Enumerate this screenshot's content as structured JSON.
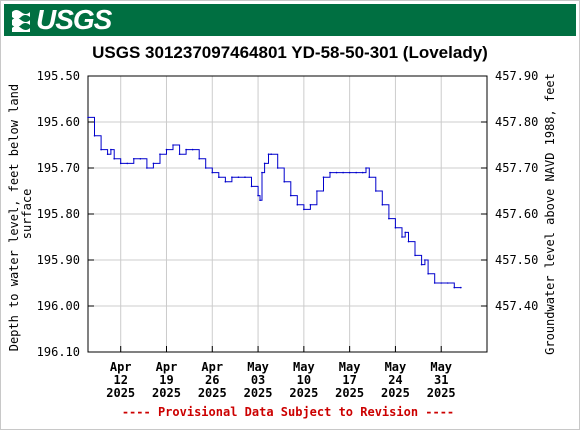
{
  "header": {
    "agency": "USGS",
    "brand_color": "#006F41"
  },
  "chart_data": {
    "type": "line",
    "title": "USGS 301237097464801 YD-58-50-301 (Lovelady)",
    "ylabel_left": "Depth to water level, feet below land surface",
    "ylabel_right": "Groundwater level above NAVD 1988, feet",
    "y_left_range": [
      195.5,
      196.1
    ],
    "y_left_inverted": true,
    "y_left_ticks": [
      "195.50",
      "195.60",
      "195.70",
      "195.80",
      "195.90",
      "196.00",
      "196.10"
    ],
    "y_right_ticks": [
      "457.90",
      "457.80",
      "457.70",
      "457.60",
      "457.50",
      "457.40"
    ],
    "x_range": [
      "2025-04-07",
      "2025-06-07"
    ],
    "x_ticks": [
      {
        "month": "Apr",
        "day": "12",
        "year": "2025",
        "date": "2025-04-12"
      },
      {
        "month": "Apr",
        "day": "19",
        "year": "2025",
        "date": "2025-04-19"
      },
      {
        "month": "Apr",
        "day": "26",
        "year": "2025",
        "date": "2025-04-26"
      },
      {
        "month": "May",
        "day": "03",
        "year": "2025",
        "date": "2025-05-03"
      },
      {
        "month": "May",
        "day": "10",
        "year": "2025",
        "date": "2025-05-10"
      },
      {
        "month": "May",
        "day": "17",
        "year": "2025",
        "date": "2025-05-17"
      },
      {
        "month": "May",
        "day": "24",
        "year": "2025",
        "date": "2025-05-24"
      },
      {
        "month": "May",
        "day": "31",
        "year": "2025",
        "date": "2025-05-31"
      }
    ],
    "grid": true,
    "series_color": "#0000CC",
    "series": [
      {
        "values": [
          {
            "x": "2025-04-07",
            "y": 195.59
          },
          {
            "x": "2025-04-08",
            "y": 195.63
          },
          {
            "x": "2025-04-09",
            "y": 195.66
          },
          {
            "x": "2025-04-10",
            "y": 195.67
          },
          {
            "x": "2025-04-10.5",
            "y": 195.66
          },
          {
            "x": "2025-04-11",
            "y": 195.68
          },
          {
            "x": "2025-04-12",
            "y": 195.69
          },
          {
            "x": "2025-04-13",
            "y": 195.69
          },
          {
            "x": "2025-04-14",
            "y": 195.68
          },
          {
            "x": "2025-04-15",
            "y": 195.68
          },
          {
            "x": "2025-04-16",
            "y": 195.7
          },
          {
            "x": "2025-04-17",
            "y": 195.69
          },
          {
            "x": "2025-04-18",
            "y": 195.67
          },
          {
            "x": "2025-04-19",
            "y": 195.66
          },
          {
            "x": "2025-04-20",
            "y": 195.65
          },
          {
            "x": "2025-04-21",
            "y": 195.67
          },
          {
            "x": "2025-04-22",
            "y": 195.66
          },
          {
            "x": "2025-04-23",
            "y": 195.66
          },
          {
            "x": "2025-04-24",
            "y": 195.68
          },
          {
            "x": "2025-04-25",
            "y": 195.7
          },
          {
            "x": "2025-04-26",
            "y": 195.71
          },
          {
            "x": "2025-04-27",
            "y": 195.72
          },
          {
            "x": "2025-04-28",
            "y": 195.73
          },
          {
            "x": "2025-04-29",
            "y": 195.72
          },
          {
            "x": "2025-04-30",
            "y": 195.72
          },
          {
            "x": "2025-05-01",
            "y": 195.72
          },
          {
            "x": "2025-05-02",
            "y": 195.74
          },
          {
            "x": "2025-05-03",
            "y": 195.76
          },
          {
            "x": "2025-05-03.3",
            "y": 195.77
          },
          {
            "x": "2025-05-03.6",
            "y": 195.71
          },
          {
            "x": "2025-05-04",
            "y": 195.69
          },
          {
            "x": "2025-05-04.6",
            "y": 195.67
          },
          {
            "x": "2025-05-05",
            "y": 195.67
          },
          {
            "x": "2025-05-06",
            "y": 195.7
          },
          {
            "x": "2025-05-07",
            "y": 195.73
          },
          {
            "x": "2025-05-08",
            "y": 195.76
          },
          {
            "x": "2025-05-09",
            "y": 195.78
          },
          {
            "x": "2025-05-10",
            "y": 195.79
          },
          {
            "x": "2025-05-11",
            "y": 195.78
          },
          {
            "x": "2025-05-12",
            "y": 195.75
          },
          {
            "x": "2025-05-13",
            "y": 195.72
          },
          {
            "x": "2025-05-14",
            "y": 195.71
          },
          {
            "x": "2025-05-15",
            "y": 195.71
          },
          {
            "x": "2025-05-16",
            "y": 195.71
          },
          {
            "x": "2025-05-17",
            "y": 195.71
          },
          {
            "x": "2025-05-18",
            "y": 195.71
          },
          {
            "x": "2025-05-19",
            "y": 195.71
          },
          {
            "x": "2025-05-19.5",
            "y": 195.7
          },
          {
            "x": "2025-05-20",
            "y": 195.72
          },
          {
            "x": "2025-05-21",
            "y": 195.75
          },
          {
            "x": "2025-05-22",
            "y": 195.78
          },
          {
            "x": "2025-05-23",
            "y": 195.81
          },
          {
            "x": "2025-05-24",
            "y": 195.83
          },
          {
            "x": "2025-05-25",
            "y": 195.85
          },
          {
            "x": "2025-05-25.5",
            "y": 195.84
          },
          {
            "x": "2025-05-26",
            "y": 195.86
          },
          {
            "x": "2025-05-27",
            "y": 195.89
          },
          {
            "x": "2025-05-28",
            "y": 195.91
          },
          {
            "x": "2025-05-28.5",
            "y": 195.9
          },
          {
            "x": "2025-05-29",
            "y": 195.93
          },
          {
            "x": "2025-05-30",
            "y": 195.95
          },
          {
            "x": "2025-05-31",
            "y": 195.95
          },
          {
            "x": "2025-06-01",
            "y": 195.95
          },
          {
            "x": "2025-06-02",
            "y": 195.96
          },
          {
            "x": "2025-06-03",
            "y": 195.96
          }
        ]
      }
    ],
    "footer_note": "---- Provisional Data Subject to Revision ----",
    "footer_color": "#CC0000"
  }
}
